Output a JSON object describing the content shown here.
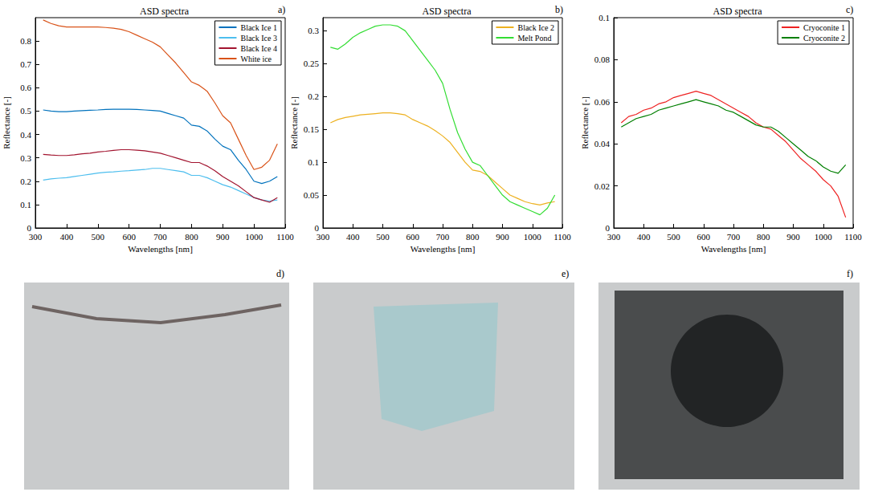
{
  "chart_data": [
    {
      "type": "line",
      "title": "ASD spectra",
      "panel": "a)",
      "x_label": "Wavelengths [nm]",
      "y_label": "Reflectance [-]",
      "x": [
        325,
        350,
        375,
        400,
        425,
        450,
        475,
        500,
        525,
        550,
        575,
        600,
        625,
        650,
        675,
        700,
        725,
        750,
        775,
        800,
        825,
        850,
        875,
        900,
        925,
        950,
        975,
        1000,
        1025,
        1050,
        1075
      ],
      "series": [
        {
          "name": "Black Ice 1",
          "color": "#0072bd",
          "values": [
            0.505,
            0.5,
            0.498,
            0.498,
            0.5,
            0.502,
            0.504,
            0.505,
            0.507,
            0.508,
            0.508,
            0.508,
            0.507,
            0.505,
            0.503,
            0.5,
            0.49,
            0.48,
            0.47,
            0.44,
            0.435,
            0.415,
            0.38,
            0.35,
            0.335,
            0.29,
            0.25,
            0.2,
            0.19,
            0.2,
            0.22
          ]
        },
        {
          "name": "Black Ice 3",
          "color": "#4dbeee",
          "values": [
            0.205,
            0.21,
            0.213,
            0.215,
            0.22,
            0.225,
            0.23,
            0.235,
            0.238,
            0.24,
            0.243,
            0.245,
            0.248,
            0.25,
            0.255,
            0.255,
            0.25,
            0.245,
            0.24,
            0.225,
            0.225,
            0.215,
            0.2,
            0.185,
            0.175,
            0.16,
            0.145,
            0.13,
            0.12,
            0.115,
            0.12
          ]
        },
        {
          "name": "Black Ice 4",
          "color": "#a2142f",
          "values": [
            0.315,
            0.312,
            0.31,
            0.31,
            0.313,
            0.317,
            0.32,
            0.325,
            0.328,
            0.332,
            0.335,
            0.335,
            0.333,
            0.33,
            0.325,
            0.32,
            0.31,
            0.3,
            0.29,
            0.28,
            0.28,
            0.265,
            0.245,
            0.22,
            0.2,
            0.18,
            0.155,
            0.13,
            0.12,
            0.11,
            0.13
          ]
        },
        {
          "name": "White ice",
          "color": "#d95319",
          "values": [
            0.89,
            0.875,
            0.865,
            0.86,
            0.86,
            0.86,
            0.86,
            0.86,
            0.858,
            0.855,
            0.85,
            0.84,
            0.825,
            0.81,
            0.795,
            0.775,
            0.74,
            0.705,
            0.665,
            0.625,
            0.61,
            0.585,
            0.535,
            0.48,
            0.45,
            0.38,
            0.31,
            0.25,
            0.26,
            0.29,
            0.36
          ]
        }
      ],
      "xlim": [
        300,
        1100
      ],
      "xticks": [
        300,
        400,
        500,
        600,
        700,
        800,
        900,
        1000,
        1100
      ],
      "ylim": [
        0,
        0.9
      ],
      "yticks": [
        0,
        0.1,
        0.2,
        0.3,
        0.4,
        0.5,
        0.6,
        0.7,
        0.8
      ],
      "grid": false,
      "legend": "top-right"
    },
    {
      "type": "line",
      "title": "ASD spectra",
      "panel": "b)",
      "x_label": "Wavelengths [nm]",
      "y_label": "Reflectance [-]",
      "x": [
        325,
        350,
        375,
        400,
        425,
        450,
        475,
        500,
        525,
        550,
        575,
        600,
        625,
        650,
        675,
        700,
        725,
        750,
        775,
        800,
        825,
        850,
        875,
        900,
        925,
        950,
        975,
        1000,
        1025,
        1050,
        1075
      ],
      "series": [
        {
          "name": "Black Ice 2",
          "color": "#edb120",
          "values": [
            0.16,
            0.165,
            0.168,
            0.17,
            0.172,
            0.173,
            0.174,
            0.175,
            0.175,
            0.174,
            0.172,
            0.165,
            0.16,
            0.155,
            0.148,
            0.14,
            0.13,
            0.115,
            0.1,
            0.088,
            0.086,
            0.08,
            0.07,
            0.06,
            0.05,
            0.045,
            0.04,
            0.037,
            0.035,
            0.038,
            0.04
          ]
        },
        {
          "name": "Melt Pond",
          "color": "#33dd33",
          "values": [
            0.275,
            0.272,
            0.28,
            0.29,
            0.297,
            0.302,
            0.307,
            0.309,
            0.309,
            0.307,
            0.3,
            0.285,
            0.27,
            0.255,
            0.24,
            0.22,
            0.18,
            0.145,
            0.12,
            0.1,
            0.095,
            0.08,
            0.065,
            0.05,
            0.04,
            0.035,
            0.03,
            0.025,
            0.02,
            0.03,
            0.05
          ]
        }
      ],
      "xlim": [
        300,
        1100
      ],
      "xticks": [
        300,
        400,
        500,
        600,
        700,
        800,
        900,
        1000,
        1100
      ],
      "ylim": [
        0,
        0.32
      ],
      "yticks": [
        0,
        0.05,
        0.1,
        0.15,
        0.2,
        0.25,
        0.3
      ],
      "grid": false,
      "legend": "top-right"
    },
    {
      "type": "line",
      "title": "ASD spectra",
      "panel": "c)",
      "x_label": "Wavelengths [nm]",
      "y_label": "Reflectance [-]",
      "x": [
        325,
        350,
        375,
        400,
        425,
        450,
        475,
        500,
        525,
        550,
        575,
        600,
        625,
        650,
        675,
        700,
        725,
        750,
        775,
        800,
        825,
        850,
        875,
        900,
        925,
        950,
        975,
        1000,
        1025,
        1050,
        1075
      ],
      "series": [
        {
          "name": "Cryoconite 1",
          "color": "#ee2222",
          "values": [
            0.05,
            0.053,
            0.054,
            0.056,
            0.057,
            0.059,
            0.06,
            0.062,
            0.063,
            0.064,
            0.065,
            0.064,
            0.063,
            0.061,
            0.059,
            0.057,
            0.055,
            0.053,
            0.05,
            0.048,
            0.047,
            0.044,
            0.041,
            0.037,
            0.033,
            0.03,
            0.027,
            0.023,
            0.02,
            0.015,
            0.005
          ]
        },
        {
          "name": "Cryoconite 2",
          "color": "#007f00",
          "values": [
            0.048,
            0.05,
            0.052,
            0.053,
            0.054,
            0.056,
            0.057,
            0.058,
            0.059,
            0.06,
            0.061,
            0.06,
            0.059,
            0.058,
            0.056,
            0.055,
            0.053,
            0.051,
            0.049,
            0.048,
            0.048,
            0.046,
            0.043,
            0.04,
            0.037,
            0.034,
            0.032,
            0.029,
            0.027,
            0.026,
            0.03
          ]
        }
      ],
      "xlim": [
        300,
        1100
      ],
      "xticks": [
        300,
        400,
        500,
        600,
        700,
        800,
        900,
        1000,
        1100
      ],
      "ylim": [
        0,
        0.1
      ],
      "yticks": [
        0,
        0.02,
        0.04,
        0.06,
        0.08,
        0.1
      ],
      "grid": false,
      "legend": "top-right"
    }
  ],
  "photos": [
    {
      "panel": "d)"
    },
    {
      "panel": "e)"
    },
    {
      "panel": "f)"
    }
  ]
}
